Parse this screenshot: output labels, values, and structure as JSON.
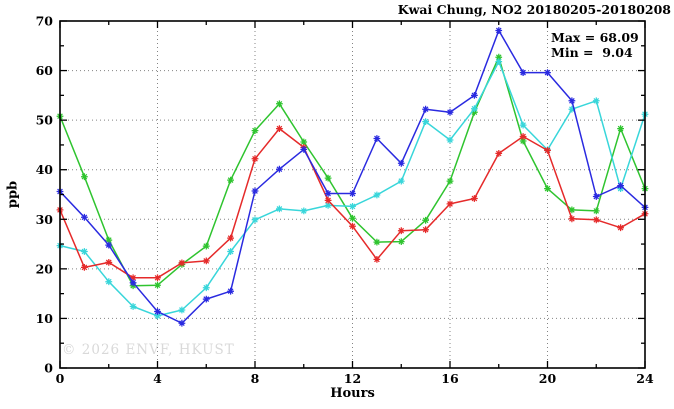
{
  "title": "Kwai Chung, NO2 20180205-20180208",
  "annotations": {
    "max_label": "Max = 68.09",
    "min_label": "Min =  9.04"
  },
  "watermark": "© 2026 ENVF, HKUST",
  "chart_data": {
    "type": "line",
    "title": "Kwai Chung, NO2 20180205-20180208",
    "xlabel": "Hours",
    "ylabel": "ppb",
    "xlim": [
      0,
      24
    ],
    "ylim": [
      0,
      70
    ],
    "x_major_ticks": [
      0,
      4,
      8,
      12,
      16,
      20,
      24
    ],
    "x_minor_ticks": [
      2,
      6,
      10,
      14,
      18,
      22
    ],
    "y_major_ticks": [
      0,
      10,
      20,
      30,
      40,
      50,
      60,
      70
    ],
    "y_minor_ticks": [
      5,
      15,
      25,
      35,
      45,
      55,
      65
    ],
    "x_gridlines": [
      4,
      8,
      12,
      16,
      20
    ],
    "y_gridlines": [
      10,
      20,
      30,
      40,
      50,
      60
    ],
    "grid": "dotted",
    "legend": "none",
    "marker": "asterisk",
    "stats": {
      "max": 68.09,
      "min": 9.04
    },
    "x": [
      0,
      1,
      2,
      3,
      4,
      5,
      6,
      7,
      8,
      9,
      10,
      11,
      12,
      13,
      14,
      15,
      16,
      17,
      18,
      19,
      20,
      21,
      22,
      23,
      24
    ],
    "series": [
      {
        "name": "green-line",
        "color": "#2fc42f",
        "values": [
          50.8,
          38.6,
          25.8,
          16.6,
          16.7,
          20.9,
          24.6,
          37.9,
          47.9,
          53.3,
          45.6,
          38.3,
          30.2,
          25.4,
          25.5,
          29.8,
          37.7,
          51.6,
          62.7,
          45.8,
          36.2,
          31.9,
          31.7,
          48.3,
          36.2
        ]
      },
      {
        "name": "cyan-line",
        "color": "#38d6da",
        "values": [
          24.7,
          23.5,
          17.4,
          12.4,
          10.5,
          11.7,
          16.2,
          23.5,
          29.9,
          32.1,
          31.7,
          32.8,
          32.6,
          34.9,
          37.7,
          49.7,
          46.0,
          52.3,
          61.8,
          49.0,
          44.0,
          52.2,
          53.9,
          36.2,
          51.2
        ]
      },
      {
        "name": "red-line",
        "color": "#e52a2a",
        "values": [
          31.9,
          20.3,
          21.3,
          18.2,
          18.2,
          21.2,
          21.6,
          26.2,
          42.2,
          48.3,
          44.5,
          33.8,
          28.6,
          21.9,
          27.7,
          27.9,
          33.1,
          34.2,
          43.3,
          46.7,
          43.9,
          30.1,
          29.9,
          28.3,
          31.1
        ]
      },
      {
        "name": "blue-line",
        "color": "#2a2ae0",
        "values": [
          35.6,
          30.4,
          24.8,
          17.2,
          11.4,
          9.04,
          13.9,
          15.5,
          35.7,
          40.1,
          44.1,
          35.2,
          35.2,
          46.3,
          41.3,
          52.2,
          51.6,
          55.0,
          68.09,
          59.6,
          59.6,
          53.9,
          34.6,
          36.8,
          32.4
        ]
      }
    ]
  }
}
